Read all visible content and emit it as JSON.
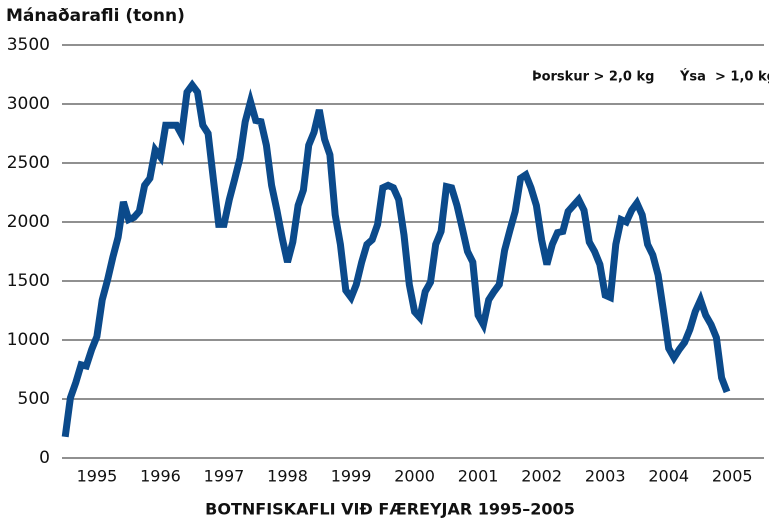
{
  "chart_data": {
    "type": "line",
    "y_label": "Mánaðarafli (tonn)",
    "title": "BOTNFISKAFLI VIÐ FÆREYJAR 1995–2005",
    "annotations": [
      "Þorskur > 2,0 kg",
      "Ýsa  > 1,0 kg"
    ],
    "x": [
      1995,
      1995.083,
      1995.167,
      1995.25,
      1995.333,
      1995.417,
      1995.5,
      1995.583,
      1995.667,
      1995.75,
      1995.833,
      1995.917,
      1996,
      1996.083,
      1996.167,
      1996.25,
      1996.333,
      1996.417,
      1996.5,
      1996.583,
      1996.667,
      1996.75,
      1996.833,
      1996.917,
      1997,
      1997.083,
      1997.167,
      1997.25,
      1997.333,
      1997.417,
      1997.5,
      1997.583,
      1997.667,
      1997.75,
      1997.833,
      1997.917,
      1998,
      1998.083,
      1998.167,
      1998.25,
      1998.333,
      1998.417,
      1998.5,
      1998.583,
      1998.667,
      1998.75,
      1998.833,
      1998.917,
      1999,
      1999.083,
      1999.167,
      1999.25,
      1999.333,
      1999.417,
      1999.5,
      1999.583,
      1999.667,
      1999.75,
      1999.833,
      1999.917,
      2000,
      2000.083,
      2000.167,
      2000.25,
      2000.333,
      2000.417,
      2000.5,
      2000.583,
      2000.667,
      2000.75,
      2000.833,
      2000.917,
      2001,
      2001.083,
      2001.167,
      2001.25,
      2001.333,
      2001.417,
      2001.5,
      2001.583,
      2001.667,
      2001.75,
      2001.833,
      2001.917,
      2002,
      2002.083,
      2002.167,
      2002.25,
      2002.333,
      2002.417,
      2002.5,
      2002.583,
      2002.667,
      2002.75,
      2002.833,
      2002.917,
      2003,
      2003.083,
      2003.167,
      2003.25,
      2003.333,
      2003.417,
      2003.5,
      2003.583,
      2003.667,
      2003.75,
      2003.833,
      2003.917,
      2004,
      2004.083,
      2004.167,
      2004.25,
      2004.333,
      2004.417,
      2004.5,
      2004.583,
      2004.667,
      2004.75,
      2004.833,
      2004.917,
      2005,
      2005.083,
      2005.167,
      2005.25,
      2005.333,
      2005.417
    ],
    "series": [
      {
        "name": "Botnfiskafli",
        "color": "#0b4a8b",
        "values": [
          180,
          510,
          640,
          790,
          780,
          920,
          1030,
          1340,
          1510,
          1700,
          1870,
          2170,
          2020,
          2040,
          2090,
          2310,
          2370,
          2610,
          2550,
          2820,
          2820,
          2820,
          2740,
          3100,
          3160,
          3100,
          2820,
          2750,
          2360,
          1980,
          1980,
          2190,
          2360,
          2540,
          2850,
          3020,
          2860,
          2850,
          2650,
          2310,
          2100,
          1860,
          1660,
          1830,
          2140,
          2270,
          2650,
          2760,
          2950,
          2700,
          2570,
          2060,
          1810,
          1420,
          1360,
          1470,
          1660,
          1810,
          1850,
          1980,
          2290,
          2310,
          2290,
          2190,
          1890,
          1470,
          1240,
          1190,
          1410,
          1490,
          1810,
          1920,
          2300,
          2290,
          2140,
          1950,
          1750,
          1660,
          1210,
          1130,
          1340,
          1410,
          1470,
          1760,
          1930,
          2090,
          2370,
          2400,
          2290,
          2140,
          1850,
          1640,
          1810,
          1910,
          1920,
          2090,
          2140,
          2190,
          2100,
          1830,
          1750,
          1640,
          1380,
          1360,
          1810,
          2020,
          2000,
          2100,
          2160,
          2060,
          1810,
          1720,
          1550,
          1250,
          930,
          850,
          920,
          980,
          1090,
          1240,
          1340,
          1210,
          1130,
          1020,
          680,
          560
        ]
      }
    ],
    "xlim": [
      1994.95,
      2006
    ],
    "xticks": [
      1995,
      1996,
      1997,
      1998,
      1999,
      2000,
      2001,
      2002,
      2003,
      2004,
      2005
    ],
    "ylim": [
      0,
      3500
    ],
    "yticks": [
      0,
      500,
      1000,
      1500,
      2000,
      2500,
      3000,
      3500
    ],
    "grid": true
  }
}
